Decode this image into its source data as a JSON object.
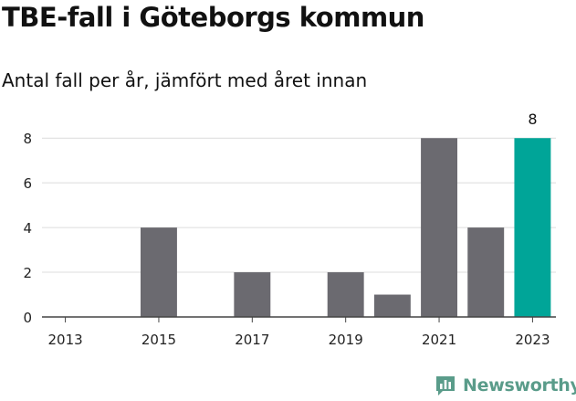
{
  "header": {
    "title": "TBE-fall i Göteborgs kommun",
    "subtitle": "Antal fall per år, jämfört med året innan"
  },
  "brand": {
    "name": "Newsworthy",
    "icon": "bar-chart-bubble-icon",
    "color": "#5a9c8a"
  },
  "chart_data": {
    "type": "bar",
    "categories": [
      "2013",
      "2014",
      "2015",
      "2016",
      "2017",
      "2018",
      "2019",
      "2020",
      "2021",
      "2022",
      "2023"
    ],
    "values": [
      0,
      0,
      4,
      0,
      2,
      0,
      2,
      1,
      8,
      4,
      8
    ],
    "x_tick_labels": [
      "2013",
      "2015",
      "2017",
      "2019",
      "2021",
      "2023"
    ],
    "y_ticks": [
      0,
      2,
      4,
      6,
      8
    ],
    "ylim": [
      0,
      8.5
    ],
    "grid": true,
    "colors": {
      "default": "#6b6a70",
      "highlight": "#00a598"
    },
    "highlight_category": "2023",
    "data_labels": [
      {
        "category": "2023",
        "label": "8"
      }
    ]
  }
}
